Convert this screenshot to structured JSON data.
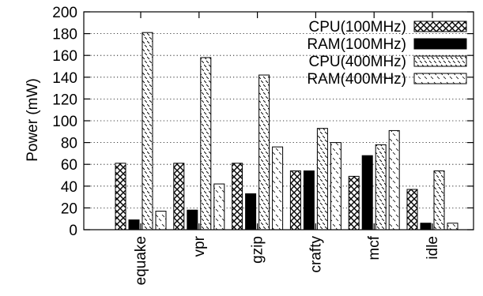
{
  "chart_data": {
    "type": "bar",
    "title": "",
    "xlabel": "",
    "ylabel": "Power (mW)",
    "ylim": [
      0,
      200
    ],
    "yticks": [
      0,
      20,
      40,
      60,
      80,
      100,
      120,
      140,
      160,
      180,
      200
    ],
    "grid": true,
    "legend_position": "top-right",
    "categories": [
      "equake",
      "vpr",
      "gzip",
      "crafty",
      "mcf",
      "idle"
    ],
    "series": [
      {
        "name": "CPU(100MHz)",
        "pattern": "crosshatch",
        "values": [
          61,
          61,
          61,
          54,
          49,
          37
        ]
      },
      {
        "name": "RAM(100MHz)",
        "pattern": "solid",
        "values": [
          9,
          18,
          33,
          54,
          68,
          6
        ]
      },
      {
        "name": "CPU(400MHz)",
        "pattern": "dense-diagonal",
        "values": [
          181,
          158,
          142,
          93,
          78,
          54
        ]
      },
      {
        "name": "RAM(400MHz)",
        "pattern": "sparse-diagonal",
        "values": [
          17,
          42,
          76,
          80,
          91,
          6
        ]
      }
    ]
  }
}
